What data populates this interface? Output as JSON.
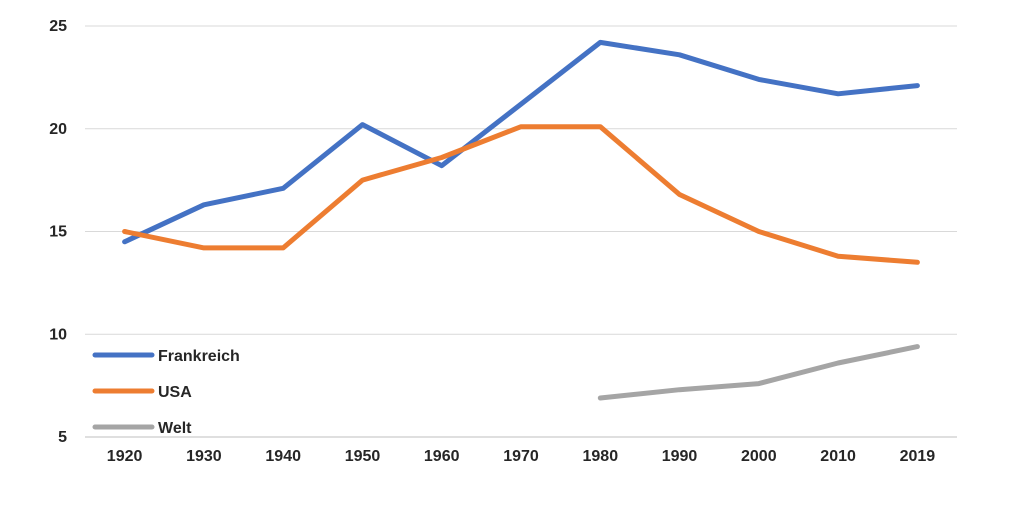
{
  "page": {
    "background_color": "#FFFFFF",
    "title": ""
  },
  "chart_data": {
    "type": "line",
    "title": "",
    "xlabel": "",
    "ylabel": "",
    "categories": [
      "1920",
      "1930",
      "1940",
      "1950",
      "1960",
      "1970",
      "1980",
      "1990",
      "2000",
      "2010",
      "2019"
    ],
    "series": [
      {
        "name": "Frankreich",
        "color": "#4472C4",
        "values": [
          14.5,
          16.3,
          17.1,
          20.2,
          18.2,
          21.2,
          24.2,
          23.6,
          22.4,
          21.7,
          22.1
        ]
      },
      {
        "name": "USA",
        "color": "#ED7D31",
        "values": [
          15.0,
          14.2,
          14.2,
          17.5,
          18.6,
          20.1,
          20.1,
          16.8,
          15.0,
          13.8,
          13.5
        ]
      },
      {
        "name": "Welt",
        "color": "#A5A5A5",
        "values": [
          null,
          null,
          null,
          null,
          null,
          null,
          6.9,
          7.3,
          7.6,
          8.6,
          9.4
        ]
      }
    ],
    "ylim": [
      5,
      25
    ],
    "yticks": [
      5,
      10,
      15,
      20,
      25
    ],
    "grid": true,
    "grid_color": "#D9D9D9",
    "axis_line_color": "#BFBFBF",
    "text_color": "#262626",
    "legend_position": "inside-left-bottom",
    "legend_entries": [
      "Frankreich",
      "USA",
      "Welt"
    ]
  }
}
